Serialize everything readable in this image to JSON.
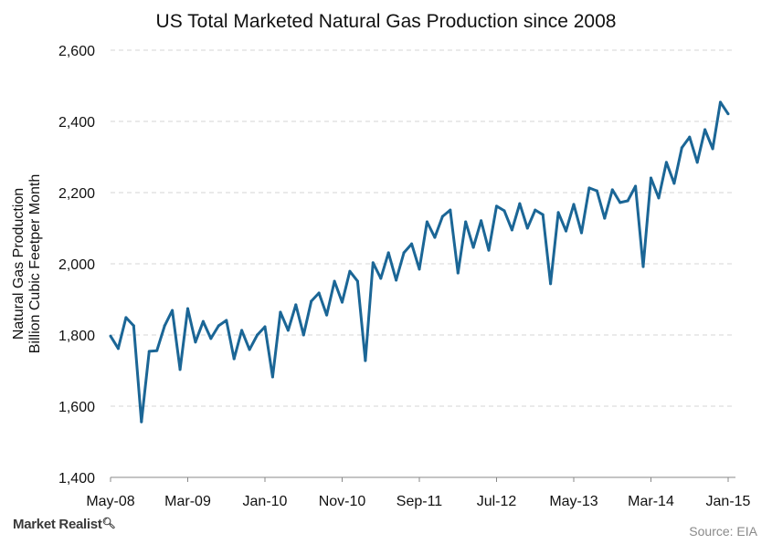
{
  "chart_data": {
    "type": "line",
    "title": "US Total Marketed Natural Gas Production since 2008",
    "ylabel_lines": [
      "Natural Gas Production",
      "Billion Cubic Feetper Month"
    ],
    "xlabel": "",
    "ylim": [
      1400,
      2600
    ],
    "yticks": [
      1400,
      1600,
      1800,
      2000,
      2200,
      2400,
      2600
    ],
    "ytick_labels": [
      "1,400",
      "1,600",
      "1,800",
      "2,000",
      "2,200",
      "2,400",
      "2,600"
    ],
    "xtick_labels": [
      "May-08",
      "Mar-09",
      "Jan-10",
      "Nov-10",
      "Sep-11",
      "Jul-12",
      "May-13",
      "Mar-14",
      "Jan-15"
    ],
    "xtick_every_months": 10,
    "grid": "horizontal-dashed",
    "legend": "none",
    "series": [
      {
        "name": "US Total Marketed Natural Gas Production",
        "color": "#1b6696",
        "start": "May-08",
        "values": [
          1797,
          1762,
          1849,
          1826,
          1556,
          1754,
          1756,
          1826,
          1869,
          1703,
          1874,
          1780,
          1838,
          1790,
          1826,
          1841,
          1733,
          1813,
          1759,
          1800,
          1823,
          1682,
          1864,
          1813,
          1885,
          1800,
          1895,
          1918,
          1856,
          1951,
          1892,
          1979,
          1951,
          1728,
          2003,
          1959,
          2031,
          1954,
          2031,
          2056,
          1985,
          2118,
          2074,
          2133,
          2151,
          1974,
          2118,
          2046,
          2121,
          2038,
          2162,
          2149,
          2095,
          2169,
          2100,
          2151,
          2138,
          1944,
          2144,
          2092,
          2167,
          2087,
          2213,
          2205,
          2128,
          2208,
          2172,
          2177,
          2218,
          1992,
          2241,
          2185,
          2285,
          2226,
          2326,
          2356,
          2285,
          2377,
          2323,
          2454,
          2421
        ]
      }
    ]
  },
  "footer": {
    "brand": "Market Realist",
    "source": "Source: EIA"
  }
}
